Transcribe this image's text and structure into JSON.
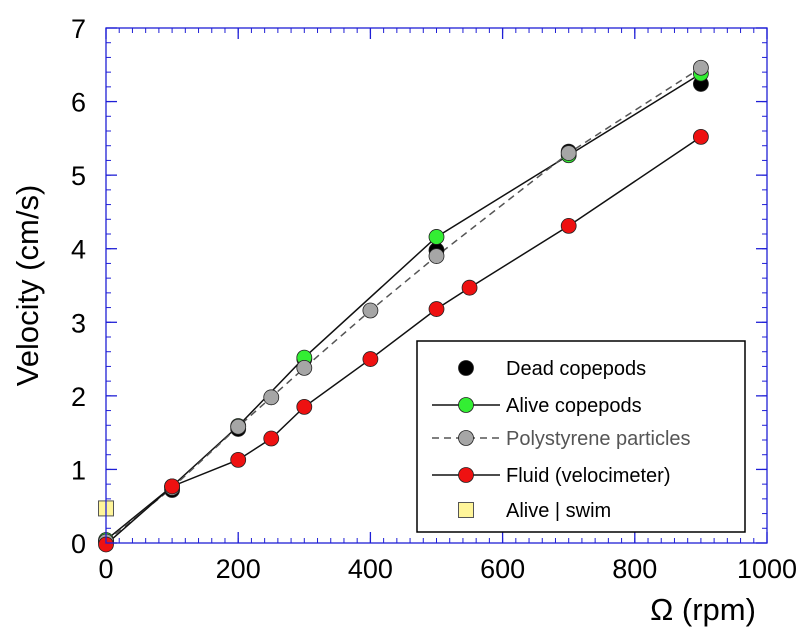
{
  "chart_data": {
    "type": "scatter",
    "title": "",
    "xlabel": "Ω (rpm)",
    "ylabel": "Velocity (cm/s)",
    "xlim": [
      0,
      1000
    ],
    "ylim": [
      0,
      7
    ],
    "xticks": [
      0,
      200,
      400,
      600,
      800,
      1000
    ],
    "yticks": [
      0,
      1,
      2,
      3,
      4,
      5,
      6,
      7
    ],
    "x_minor_step": 20,
    "y_minor_step": 0.2,
    "grid": false,
    "legend_position": "bottom-right",
    "axis_color": "#1f1fd6",
    "series": [
      {
        "name": "Dead copepods",
        "marker": "circle",
        "line": "none",
        "color": "#000000",
        "x": [
          0,
          100,
          200,
          300,
          500,
          700,
          900
        ],
        "y": [
          0.02,
          0.72,
          1.55,
          2.5,
          3.98,
          5.32,
          6.24
        ]
      },
      {
        "name": "Alive copepods",
        "marker": "circle",
        "line": "solid",
        "color": "#33ee33",
        "x": [
          0,
          100,
          200,
          300,
          500,
          700,
          900
        ],
        "y": [
          0.04,
          0.77,
          1.59,
          2.52,
          4.16,
          5.27,
          6.38
        ]
      },
      {
        "name": "Polystyrene particles",
        "marker": "circle",
        "line": "dashed",
        "color": "#a6a6a6",
        "x": [
          0,
          100,
          200,
          250,
          300,
          400,
          500,
          700,
          900
        ],
        "y": [
          0.02,
          0.75,
          1.58,
          1.98,
          2.38,
          3.16,
          3.9,
          5.3,
          6.46
        ]
      },
      {
        "name": "Fluid (velocimeter)",
        "marker": "circle",
        "line": "solid",
        "color": "#ee1111",
        "x": [
          0,
          100,
          200,
          250,
          300,
          400,
          500,
          550,
          700,
          900
        ],
        "y": [
          -0.02,
          0.77,
          1.13,
          1.42,
          1.85,
          2.5,
          3.18,
          3.47,
          4.31,
          5.52
        ]
      },
      {
        "name": "Alive | swim",
        "marker": "square",
        "line": "none",
        "color": "#fff59a",
        "x": [
          0
        ],
        "y": [
          0.47
        ]
      }
    ]
  }
}
